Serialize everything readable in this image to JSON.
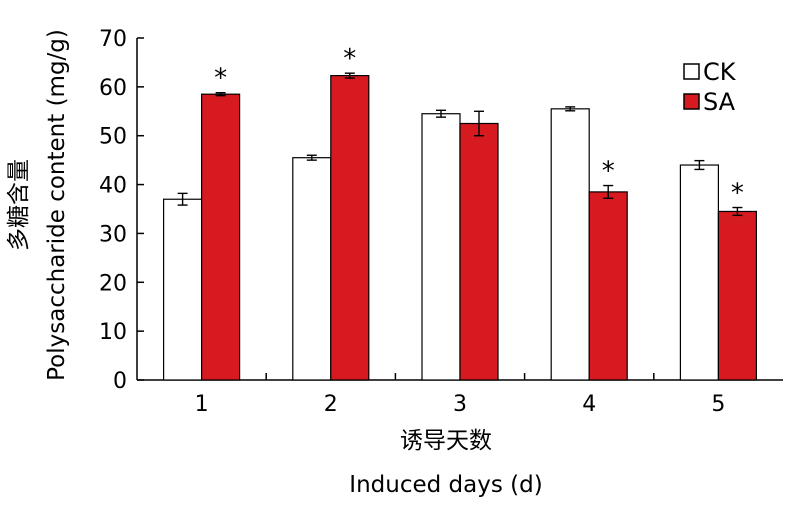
{
  "chart_data": {
    "type": "bar",
    "categories": [
      "1",
      "2",
      "3",
      "4",
      "5"
    ],
    "ylabel_zh": "多糖含量",
    "ylabel_en": "Polysaccharide content (mg/g)",
    "xlabel_zh": "诱导天数",
    "xlabel_en": "Induced days (d)",
    "ylim": [
      0,
      70
    ],
    "yticks": [
      "0",
      "10",
      "20",
      "30",
      "40",
      "50",
      "60",
      "70"
    ],
    "legend_position": "top-right",
    "series": [
      {
        "name": "CK",
        "color": "#ffffff",
        "values": [
          37.0,
          45.5,
          54.5,
          55.5,
          44.0
        ],
        "errors": [
          1.2,
          0.5,
          0.7,
          0.4,
          0.9
        ],
        "significance": [
          "",
          "",
          "",
          "",
          ""
        ]
      },
      {
        "name": "SA",
        "color": "#d71920",
        "values": [
          58.5,
          62.3,
          52.5,
          38.5,
          34.5
        ],
        "errors": [
          0.3,
          0.5,
          2.5,
          1.3,
          0.8
        ],
        "significance": [
          "*",
          "*",
          "",
          "*",
          "*"
        ]
      }
    ]
  }
}
